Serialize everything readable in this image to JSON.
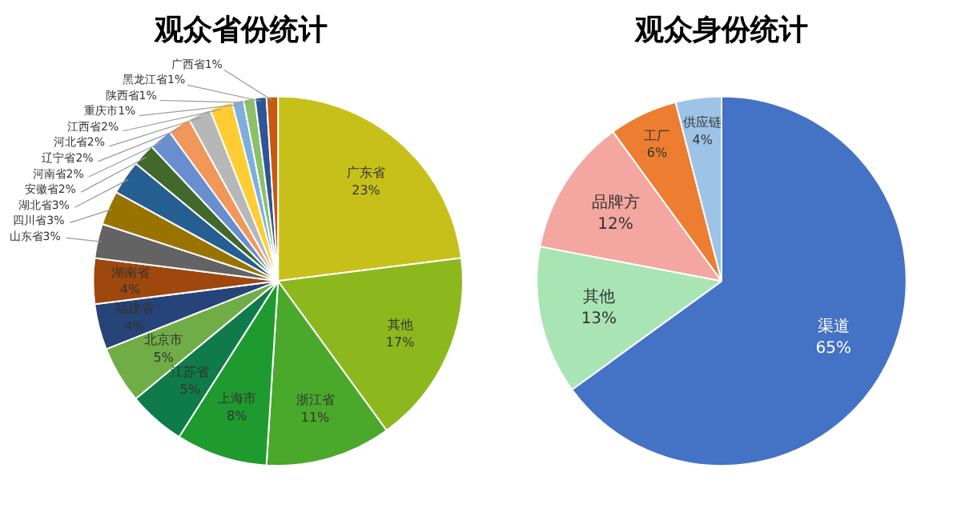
{
  "chart_data": [
    {
      "type": "pie",
      "title": "观众省份统计",
      "categories": [
        "广东省",
        "其他",
        "浙江省",
        "上海市",
        "江苏省",
        "北京市",
        "福建省",
        "湖南省",
        "山东省",
        "四川省",
        "湖北省",
        "安徽省",
        "河南省",
        "辽宁省",
        "河北省",
        "江西省",
        "重庆市",
        "陕西省",
        "黑龙江省",
        "广西省"
      ],
      "values": [
        23,
        17,
        11,
        8,
        5,
        5,
        4,
        4,
        3,
        3,
        3,
        2,
        2,
        2,
        2,
        2,
        1,
        1,
        1,
        1
      ],
      "value_labels": [
        "23%",
        "17%",
        "11%",
        "8%",
        "5%",
        "5%",
        "4%",
        "4%",
        "3%",
        "3%",
        "3%",
        "2%",
        "2%",
        "2%",
        "2%",
        "2%",
        "1%",
        "1%",
        "1%",
        "1%"
      ],
      "colors": [
        "#c8c01a",
        "#8cb81e",
        "#4aa82a",
        "#1f9a2e",
        "#0f7a4a",
        "#70ad47",
        "#264478",
        "#9e480e",
        "#636363",
        "#997300",
        "#255e91",
        "#43682b",
        "#698ed0",
        "#f1975a",
        "#b7b7b7",
        "#ffcd33",
        "#7cafdd",
        "#8cc168",
        "#2f5597",
        "#c55a11"
      ]
    },
    {
      "type": "pie",
      "title": "观众身份统计",
      "categories": [
        "渠道",
        "其他",
        "品牌方",
        "工厂",
        "供应链"
      ],
      "values": [
        65,
        13,
        12,
        6,
        4
      ],
      "value_labels": [
        "65%",
        "13%",
        "12%",
        "6%",
        "4%"
      ],
      "colors": [
        "#4472c4",
        "#a9e4b4",
        "#f4a6a0",
        "#ed7d31",
        "#9dc3e6"
      ]
    }
  ]
}
